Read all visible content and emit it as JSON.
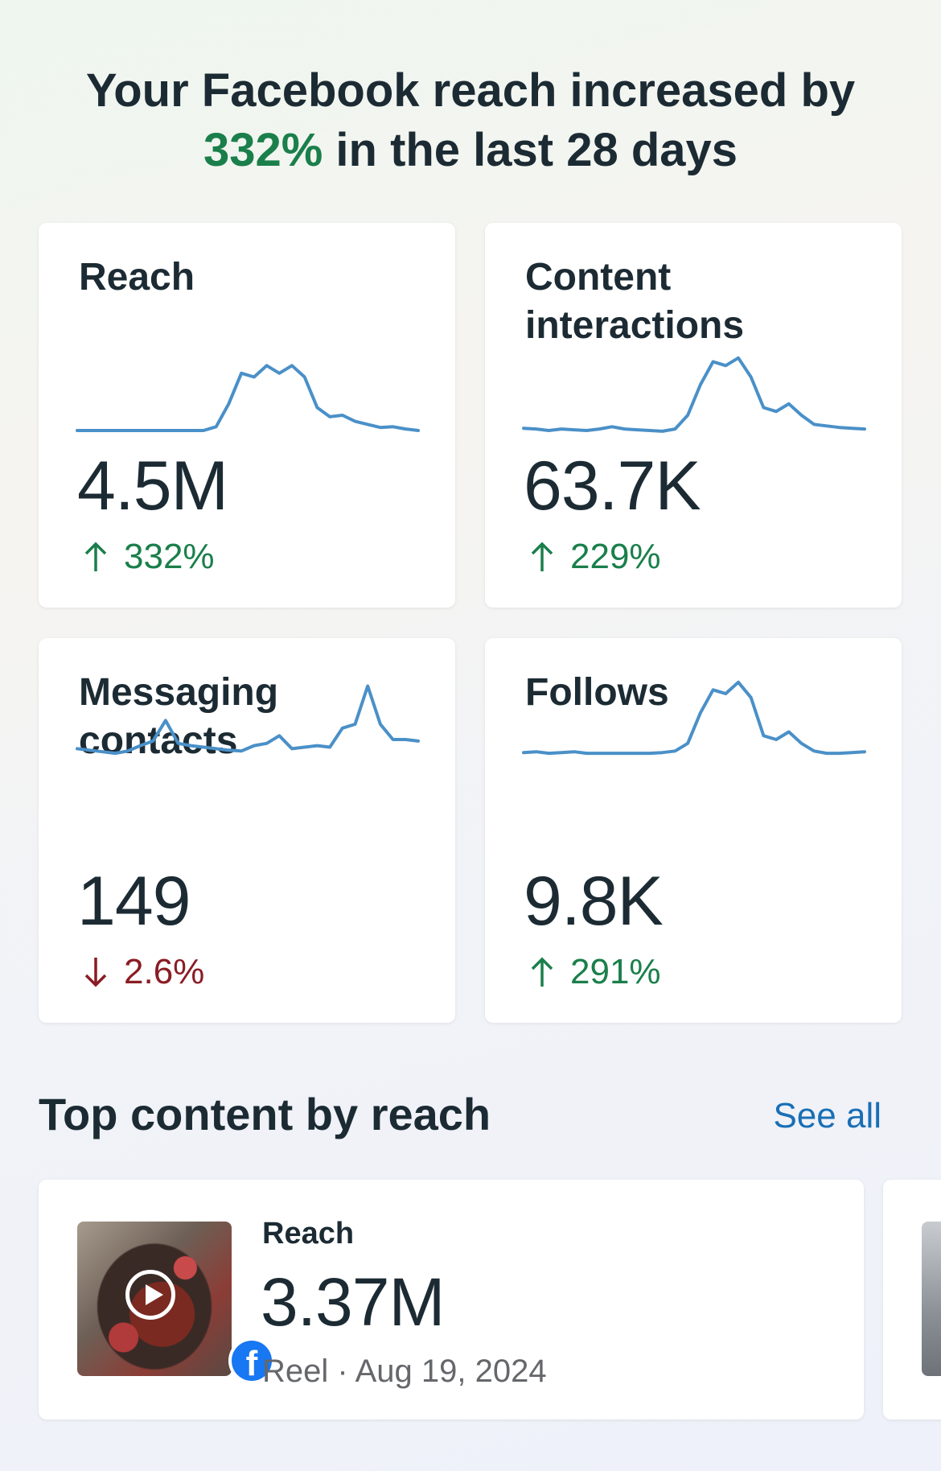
{
  "headline": {
    "prefix": "Your Facebook reach increased by",
    "percent": "332%",
    "suffix": "in the last 28 days"
  },
  "metrics": [
    {
      "title": "Reach",
      "value": "4.5M",
      "change": "332%",
      "direction": "up",
      "trend": [
        0,
        0,
        0,
        0,
        0,
        0,
        0,
        0,
        0,
        0,
        0,
        0.05,
        0.35,
        0.75,
        0.7,
        0.85,
        0.75,
        0.85,
        0.7,
        0.3,
        0.18,
        0.2,
        0.12,
        0.08,
        0.04,
        0.05,
        0.02,
        0
      ]
    },
    {
      "title": "Content interactions",
      "value": "63.7K",
      "change": "229%",
      "direction": "up",
      "trend": [
        0.03,
        0.02,
        0,
        0.02,
        0.01,
        0,
        0.02,
        0.05,
        0.02,
        0.01,
        0,
        -0.01,
        0.02,
        0.2,
        0.6,
        0.9,
        0.85,
        0.95,
        0.7,
        0.3,
        0.25,
        0.35,
        0.2,
        0.08,
        0.06,
        0.04,
        0.03,
        0.02
      ]
    },
    {
      "title": "Messaging contacts",
      "value": "149",
      "change": "2.6%",
      "direction": "down",
      "trend": [
        0.08,
        0.06,
        0.04,
        0.02,
        0.05,
        0.12,
        0.18,
        0.45,
        0.15,
        0.12,
        0.1,
        0.08,
        0.06,
        0.05,
        0.12,
        0.15,
        0.25,
        0.08,
        0.1,
        0.12,
        0.1,
        0.35,
        0.4,
        0.9,
        0.4,
        0.2,
        0.2,
        0.18
      ]
    },
    {
      "title": "Follows",
      "value": "9.8K",
      "change": "291%",
      "direction": "up",
      "trend": [
        0.03,
        0.04,
        0.02,
        0.03,
        0.04,
        0.02,
        0.02,
        0.02,
        0.02,
        0.02,
        0.02,
        0.03,
        0.05,
        0.15,
        0.55,
        0.85,
        0.8,
        0.95,
        0.75,
        0.25,
        0.2,
        0.3,
        0.15,
        0.05,
        0.02,
        0.02,
        0.03,
        0.04
      ]
    }
  ],
  "top_content": {
    "title": "Top content by reach",
    "see_all": "See all",
    "item": {
      "label": "Reach",
      "value": "3.37M",
      "meta": "Reel · Aug 19, 2024",
      "icon": "facebook-badge-icon"
    }
  },
  "colors": {
    "sparkline": "#4a90c8",
    "up": "#1a7f4b",
    "down": "#8a1c24",
    "link": "#1a6fb5"
  }
}
